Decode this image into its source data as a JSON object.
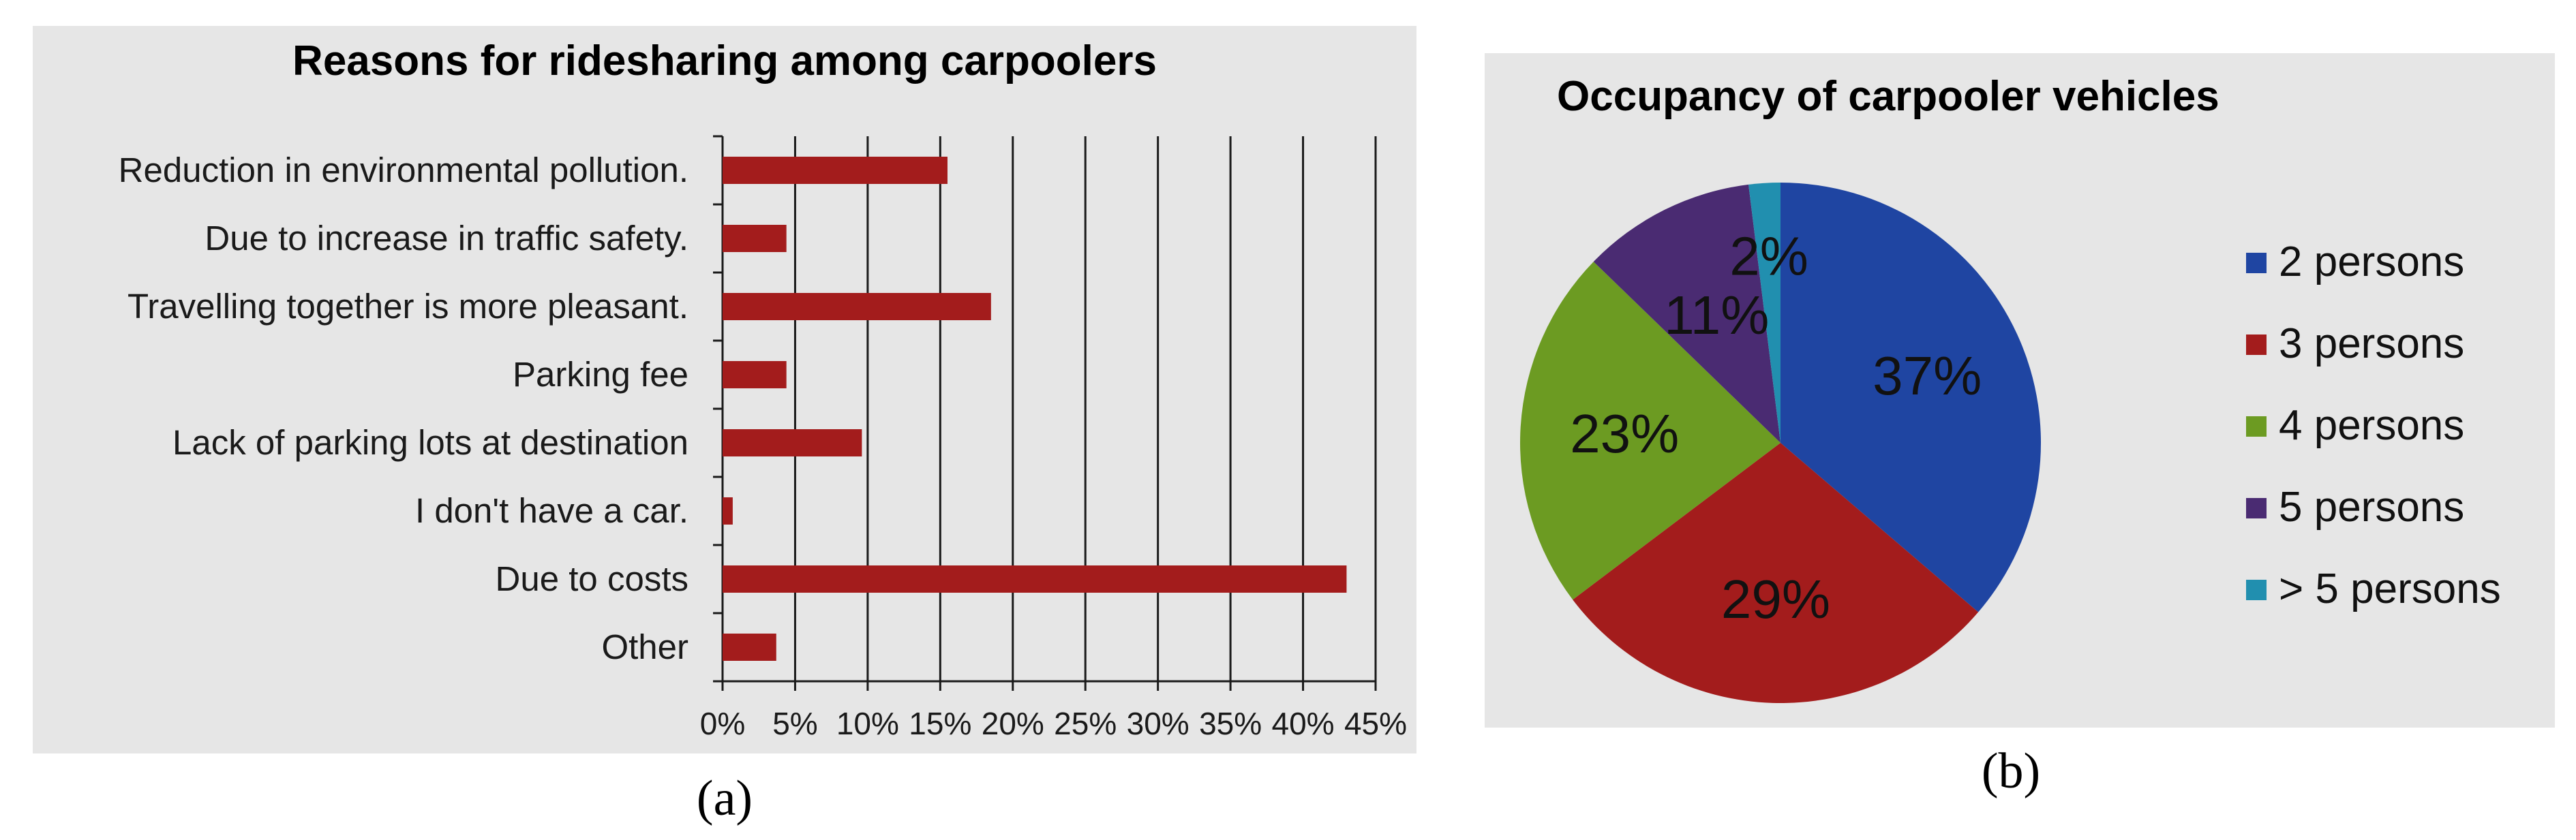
{
  "chart_data": [
    {
      "type": "bar",
      "orientation": "horizontal",
      "title": "Reasons for ridesharing among carpoolers",
      "categories": [
        "Reduction in environmental pollution.",
        "Due to increase in traffic safety.",
        "Travelling together is more pleasant.",
        "Parking fee",
        "Lack of parking lots at destination",
        "I don't have a car.",
        "Due to costs",
        "Other"
      ],
      "values": [
        15.5,
        4.4,
        18.5,
        4.4,
        9.6,
        0.7,
        43,
        3.7
      ],
      "value_unit": "%",
      "xlim": [
        0,
        45
      ],
      "xticks": [
        "0%",
        "5%",
        "10%",
        "15%",
        "20%",
        "25%",
        "30%",
        "35%",
        "40%",
        "45%"
      ],
      "grid": true,
      "bar_color": "#a31c1c",
      "caption": "(a)"
    },
    {
      "type": "pie",
      "title": "Occupancy of carpooler vehicles",
      "labels": [
        "2 persons",
        "3 persons",
        "4 persons",
        "5 persons",
        "> 5 persons"
      ],
      "values": [
        37,
        29,
        23,
        11,
        2
      ],
      "value_labels": [
        "37%",
        "29%",
        "23%",
        "11%",
        "2%"
      ],
      "colors": [
        "#1f45a2",
        "#a31c1c",
        "#6c9b22",
        "#4a2b72",
        "#218faf"
      ],
      "legend_position": "right",
      "caption": "(b)"
    }
  ]
}
